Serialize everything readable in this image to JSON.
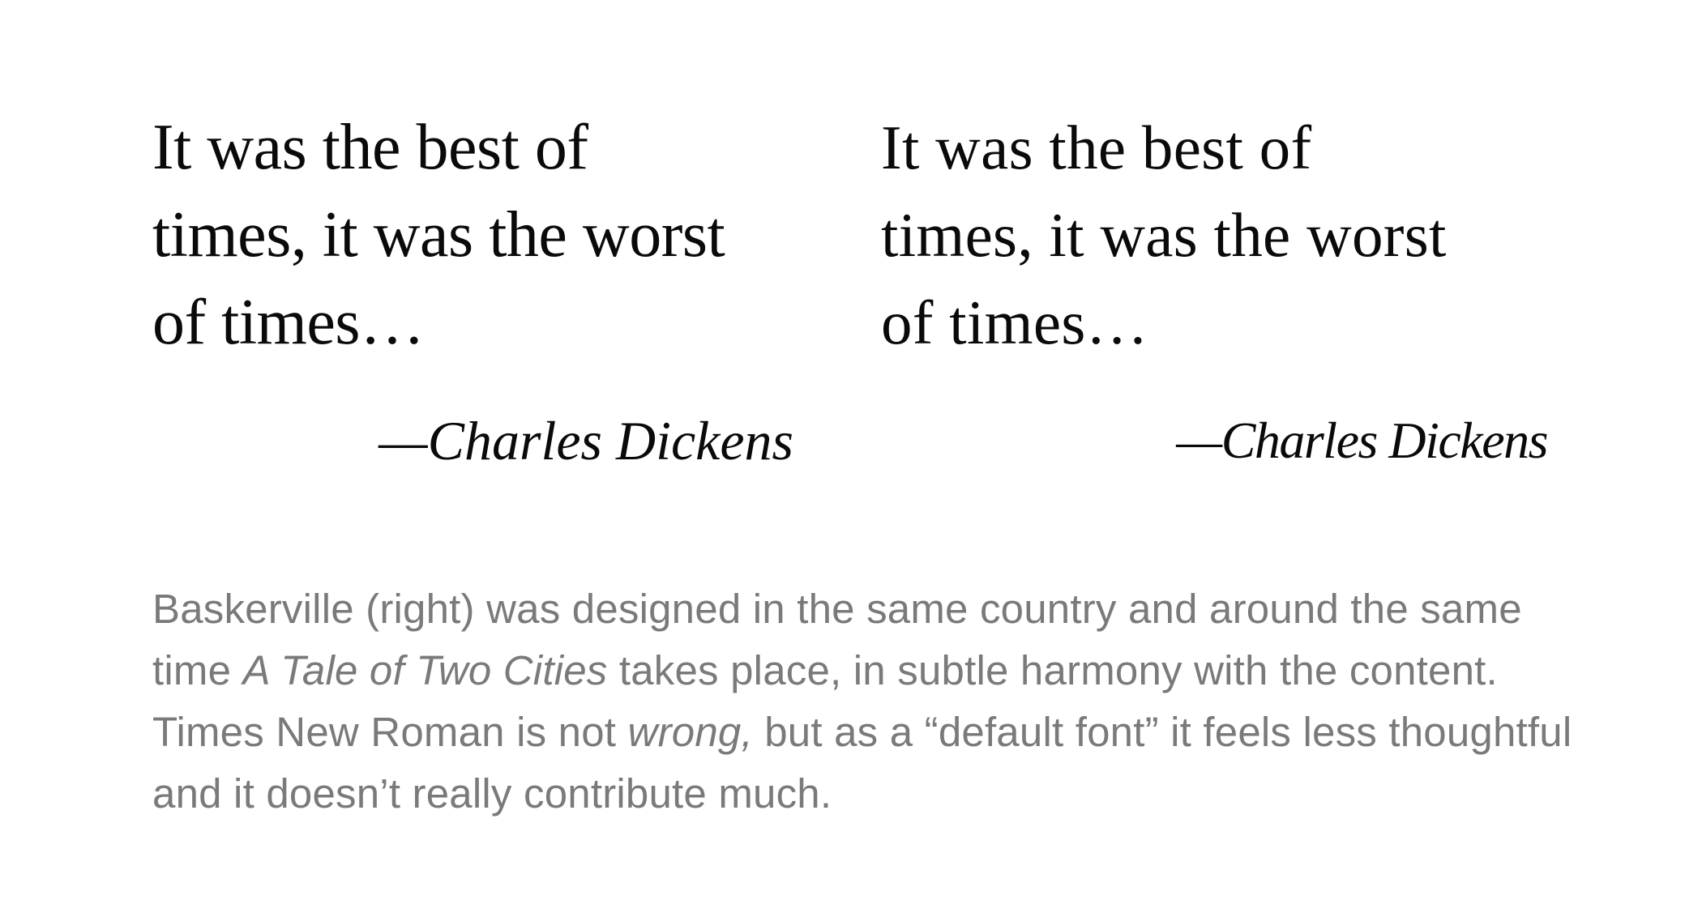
{
  "comparison": {
    "left": {
      "quote": "It was the best of\ntimes, it was the worst\nof times…",
      "attribution": "—Charles Dickens"
    },
    "right": {
      "quote": "It was the best of\ntimes, it was the worst\nof times…",
      "attribution": "—Charles Dickens"
    }
  },
  "caption": {
    "part1": "Baskerville (right) was designed in the same country and around the same time ",
    "italic1": "A Tale of Two Cities",
    "part2": " takes place, in subtle harmony with the content. Times New Roman is not ",
    "italic2": "wrong,",
    "part3": " but as a “default font” it feels less thoughtful and it doesn’t really contribute much."
  },
  "colors": {
    "quote_text": "#0a0a0a",
    "caption_text": "#7a7a7a",
    "background": "#ffffff"
  }
}
